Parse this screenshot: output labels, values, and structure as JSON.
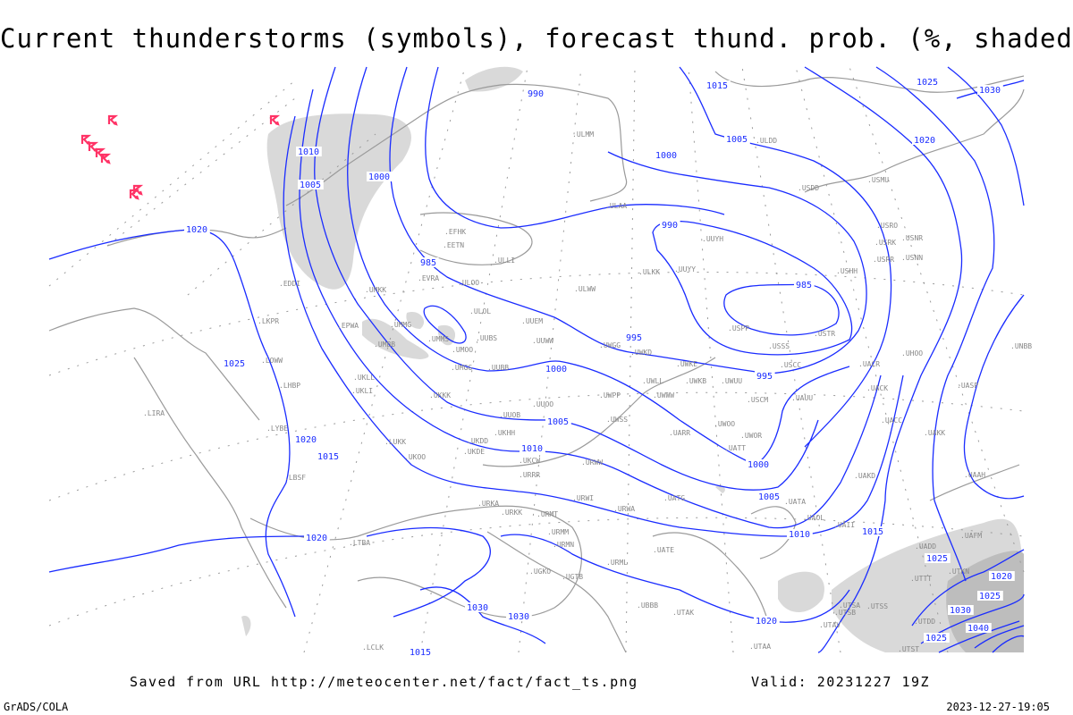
{
  "title": "Current thunderstorms (symbols), forecast thund. prob. (%, shaded)",
  "footer": {
    "source": "Saved from URL http://meteocenter.net/fact/fact_ts.png",
    "valid": "Valid: 20231227 19Z",
    "software": "GrADS/COLA",
    "timestamp": "2023-12-27-19:05"
  },
  "colors": {
    "isobars": "#1a2cff",
    "coastlines": "#9a9a9a",
    "thunderstorm_symbol": "#ff3366",
    "probability_shading": "#d9d9d9"
  },
  "symbols": {
    "current_thunderstorm": "thunderstorm-symbol"
  },
  "isobar_labels": [
    "1020",
    "1010",
    "1005",
    "1000",
    "985",
    "990",
    "995",
    "985",
    "990",
    "1000",
    "1005",
    "1015",
    "1020",
    "1025",
    "1030",
    "1025",
    "1020",
    "1015",
    "1010",
    "1005",
    "1000",
    "995",
    "1000",
    "1005",
    "1010",
    "1015",
    "1020",
    "1025",
    "1030",
    "1030",
    "1020",
    "1025",
    "1030",
    "1040",
    "1025",
    "1015",
    "1020"
  ],
  "stations": [
    "EFHK",
    "EETN",
    "ULLI",
    "EVRA",
    "ULOO",
    "ULWW",
    "ULOL",
    "UUEM",
    "UMMG",
    "EPWA",
    "UMBB",
    "UMMS",
    "UMOO",
    "UUBS",
    "UUWW",
    "UWGG",
    "UMGG",
    "UUBB",
    "UKLL",
    "UKLI",
    "UKKK",
    "UUOO",
    "UUOB",
    "UKHH",
    "UKDD",
    "LUKK",
    "UKOO",
    "UKDE",
    "UKCW",
    "URRR",
    "URWW",
    "URWI",
    "URKA",
    "URMT",
    "URKK",
    "URMM",
    "URMN",
    "URML",
    "UGKO",
    "UGTB",
    "UBBB",
    "UTAK",
    "UATE",
    "UATG",
    "UWPP",
    "UWWW",
    "UWSS",
    "URWA",
    "UWKD",
    "UWKE",
    "UWKB",
    "UWUU",
    "UWLL",
    "ULAA",
    "ULKK",
    "UUYY",
    "UUYH",
    "USSS",
    "USPP",
    "USTR",
    "USCC",
    "USHH",
    "USRR",
    "USRK",
    "USRO",
    "USNR",
    "USNN",
    "USMU",
    "USDD",
    "ULMM",
    "ULDD",
    "UARR",
    "UWOO",
    "UWOR",
    "UATT",
    "USCM",
    "UAUU",
    "UACK",
    "UACC",
    "UAKK",
    "UAKD",
    "UATA",
    "UAOL",
    "UAII",
    "UADD",
    "UAFM",
    "UTTT",
    "UTKN",
    "UTSA",
    "UTSS",
    "UTAV",
    "UTSB",
    "UTST",
    "UTAA",
    "UASP",
    "UNBB",
    "UHOO",
    "UACR",
    "UAAH",
    "UTDD",
    "EDDI",
    "LKPR",
    "LOWW",
    "LHBP",
    "LYBE",
    "LBSF",
    "LIRA",
    "UMKK",
    "LTBA",
    "LCLK"
  ]
}
